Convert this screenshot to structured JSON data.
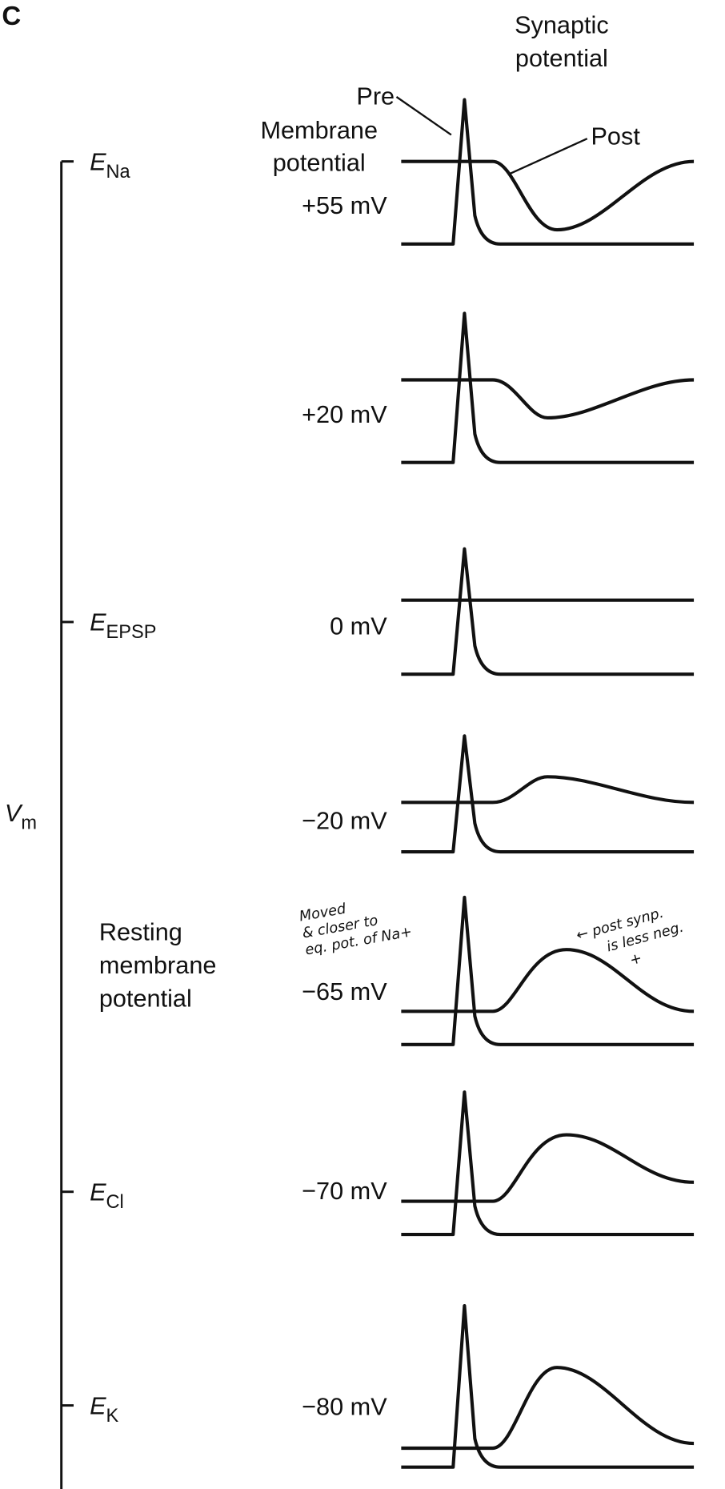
{
  "panel_label": "C",
  "header": {
    "title_lines": [
      "Synaptic",
      "potential"
    ]
  },
  "trace_labels": {
    "pre": "Pre",
    "post": "Post"
  },
  "column_label_lines": [
    "Membrane",
    "potential"
  ],
  "axis": {
    "symbol": "V",
    "subscript": "m",
    "levels": [
      {
        "symbol": "E",
        "subscript": "Na"
      },
      {
        "symbol": "E",
        "subscript": "EPSP"
      },
      {
        "symbol": "E",
        "subscript": "Cl"
      },
      {
        "symbol": "E",
        "subscript": "K"
      }
    ]
  },
  "rows": [
    {
      "label": "+55 mV"
    },
    {
      "label": "+20 mV"
    },
    {
      "label": "0 mV"
    },
    {
      "label": "−20 mV"
    },
    {
      "label": "−65 mV"
    },
    {
      "label": "−70 mV"
    },
    {
      "label": "−80 mV"
    }
  ],
  "resting_label_lines": [
    "Resting",
    "membrane",
    "potential"
  ],
  "annotations": [
    {
      "lines": [
        "Moved",
        "& closer to",
        "eq. pot. of Na+"
      ]
    },
    {
      "lines": [
        "← post synp.",
        "is less neg.",
        "+"
      ]
    }
  ]
}
